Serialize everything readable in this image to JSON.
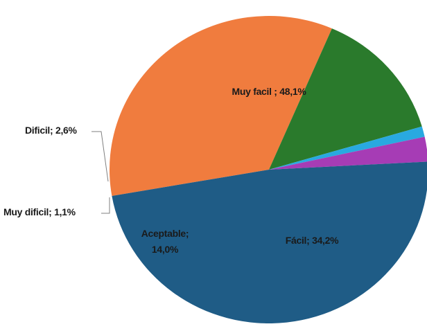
{
  "chart_data": {
    "type": "pie",
    "slices": [
      {
        "label": "Muy facil ;",
        "text": "48,1%",
        "value": 48.1,
        "color": "#1f5c86"
      },
      {
        "label": "Fácil;",
        "text": "34,2%",
        "value": 34.2,
        "color": "#f07c3e"
      },
      {
        "label": "Aceptable;",
        "text": "14,0%",
        "value": 14.0,
        "color": "#2a7a2c"
      },
      {
        "label": "Muy dificil;",
        "text": "1,1%",
        "value": 1.1,
        "color": "#29a9e0"
      },
      {
        "label": "Dificil;",
        "text": "2,6%",
        "value": 2.6,
        "color": "#a63cb5"
      }
    ],
    "title": ""
  }
}
